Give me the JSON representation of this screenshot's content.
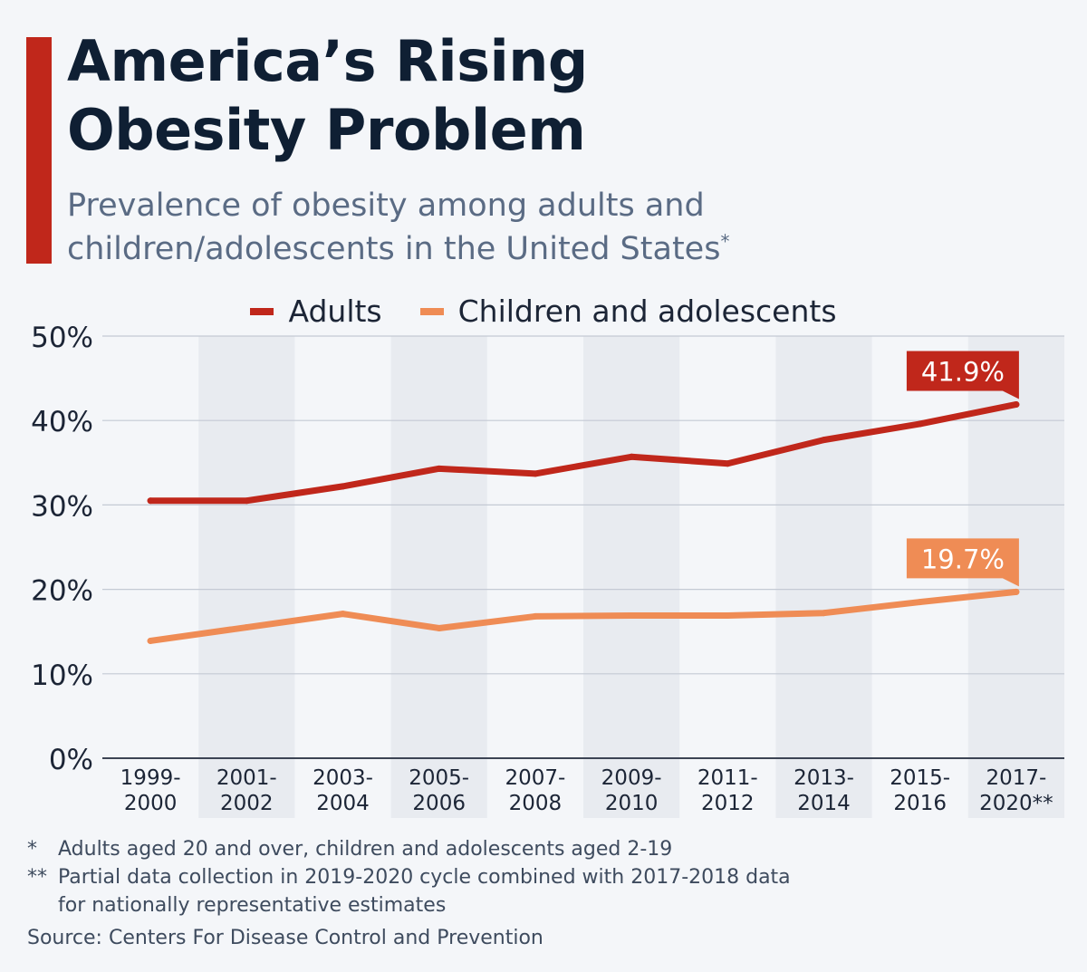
{
  "title_line1": "America’s Rising",
  "title_line2": "Obesity Problem",
  "subtitle_line1": "Prevalence of obesity among adults and",
  "subtitle_line2": "children/adolescents in the United States",
  "subtitle_mark": "*",
  "footnotes": {
    "note1_mark": "*",
    "note1_text": "Adults aged 20 and over, children and adolescents aged 2-19",
    "note2_mark": "**",
    "note2_text_line1": "Partial data collection in 2019-2020 cycle combined with 2017-2018 data",
    "note2_text_line2": "for nationally representative estimates"
  },
  "source": "Source: Centers For Disease Control and Prevention",
  "colors": {
    "accent": "#c0271b",
    "adults": "#c0271b",
    "children": "#ef8c55",
    "title": "#0f1f33",
    "subtitle": "#5a6b84",
    "band": "#e8ebf0",
    "grid": "#c4cad4"
  },
  "chart_data": {
    "type": "line",
    "categories": [
      [
        "1999-",
        "2000"
      ],
      [
        "2001-",
        "2002"
      ],
      [
        "2003-",
        "2004"
      ],
      [
        "2005-",
        "2006"
      ],
      [
        "2007-",
        "2008"
      ],
      [
        "2009-",
        "2010"
      ],
      [
        "2011-",
        "2012"
      ],
      [
        "2013-",
        "2014"
      ],
      [
        "2015-",
        "2016"
      ],
      [
        "2017-",
        "2020**"
      ]
    ],
    "series": [
      {
        "name": "Adults",
        "color": "#c0271b",
        "values": [
          30.5,
          30.5,
          32.2,
          34.3,
          33.7,
          35.7,
          34.9,
          37.7,
          39.6,
          41.9
        ]
      },
      {
        "name": "Children and adolescents",
        "color": "#ef8c55",
        "values": [
          13.9,
          15.5,
          17.1,
          15.4,
          16.8,
          16.9,
          16.9,
          17.2,
          18.5,
          19.7
        ]
      }
    ],
    "value_labels": [
      "41.9%",
      "19.7%"
    ],
    "yticks": [
      "0%",
      "10%",
      "20%",
      "30%",
      "40%",
      "50%"
    ],
    "ylim": [
      0,
      50
    ],
    "grid": true,
    "legend_position": "top-center"
  }
}
